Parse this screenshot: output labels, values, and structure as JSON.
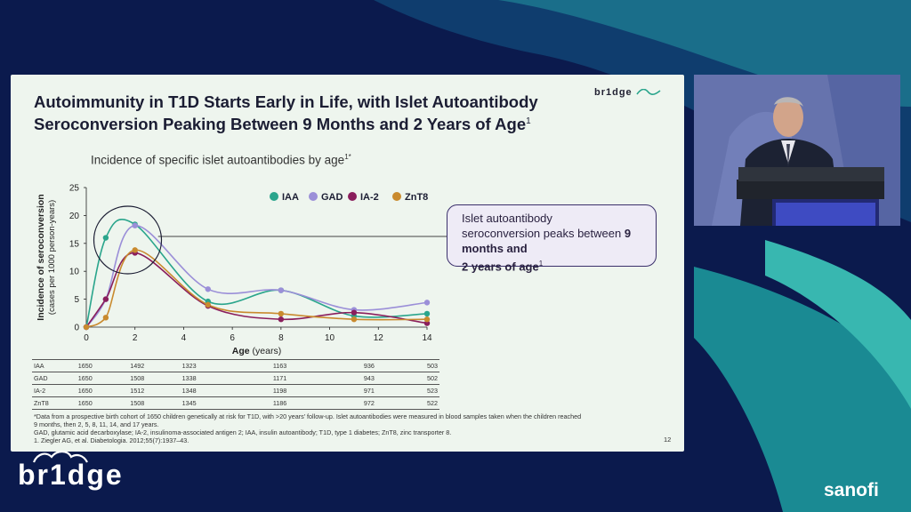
{
  "slide": {
    "title_line1": "Autoimmunity in T1D Starts Early in Life, with Islet Autoantibody",
    "title_line2": "Seroconversion Peaking Between 9 Months and 2 Years of Age",
    "title_sup": "1",
    "logo_text": "br1dge",
    "subtitle": "Incidence of specific islet autoantibodies by age",
    "subtitle_sup": "1*",
    "callout_line1": "Islet autoantibody",
    "callout_line2": "seroconversion peaks between ",
    "callout_bold1": "9",
    "callout_bold2": "months and",
    "callout_bold3": "2 years of age",
    "callout_sup": "1",
    "footnote1": "*Data from a prospective birth cohort of 1650 children genetically at risk for T1D, with >20 years' follow-up. Islet autoantibodies were measured in blood samples taken when the children reached",
    "footnote2": "9 months, then 2, 5, 8, 11, 14, and 17 years.",
    "footnote3": "GAD, glutamic acid decarboxylase; IA-2, insulinoma-associated antigen 2; IAA, insulin autoantibody; T1D, type 1 diabetes; ZnT8, zinc transporter 8.",
    "footnote4": "1. Ziegler AG, et al. Diabetologia. 2012;55(7):1937–43.",
    "page_number": "12"
  },
  "table": [
    {
      "label": "IAA",
      "values": [
        "1650",
        "1492",
        "1323",
        "1163",
        "936",
        "503"
      ]
    },
    {
      "label": "GAD",
      "values": [
        "1650",
        "1508",
        "1338",
        "1171",
        "943",
        "502"
      ]
    },
    {
      "label": "IA-2",
      "values": [
        "1650",
        "1512",
        "1348",
        "1198",
        "971",
        "523"
      ]
    },
    {
      "label": "ZnT8",
      "values": [
        "1650",
        "1508",
        "1345",
        "1186",
        "972",
        "522"
      ]
    }
  ],
  "brand": {
    "bridge": "br1dge",
    "sanofi": "sanofi"
  },
  "colors": {
    "IAA": "#2aa58c",
    "GAD": "#9b8fd8",
    "IA-2": "#8a1e5c",
    "ZnT8": "#c98a2e"
  },
  "chart_data": {
    "type": "line",
    "xlabel": "Age",
    "xlabel_unit": "(years)",
    "ylabel": "Incidence of seroconversion",
    "ylabel_unit": "(cases per 1000 person-years)",
    "xlim": [
      0,
      14
    ],
    "ylim": [
      0,
      25
    ],
    "xticks": [
      0,
      2,
      4,
      6,
      8,
      10,
      12,
      14
    ],
    "yticks": [
      0,
      5,
      10,
      15,
      20,
      25
    ],
    "legend_position": "top",
    "series": [
      {
        "name": "IAA",
        "x": [
          0,
          0.8,
          2,
          5,
          8,
          11,
          14
        ],
        "y": [
          0,
          16,
          18.4,
          4.6,
          6.6,
          2.0,
          2.4
        ]
      },
      {
        "name": "GAD",
        "x": [
          0,
          0.8,
          2,
          5,
          8,
          11,
          14
        ],
        "y": [
          0,
          5,
          18.2,
          6.8,
          6.6,
          3.1,
          4.4
        ]
      },
      {
        "name": "IA-2",
        "x": [
          0,
          0.8,
          2,
          5,
          8,
          11,
          14
        ],
        "y": [
          0,
          5,
          13.3,
          3.8,
          1.4,
          2.6,
          0.7
        ]
      },
      {
        "name": "ZnT8",
        "x": [
          0,
          0.8,
          2,
          5,
          8,
          11,
          14
        ],
        "y": [
          0,
          1.7,
          13.8,
          4.0,
          2.4,
          1.4,
          1.4
        ]
      }
    ]
  }
}
